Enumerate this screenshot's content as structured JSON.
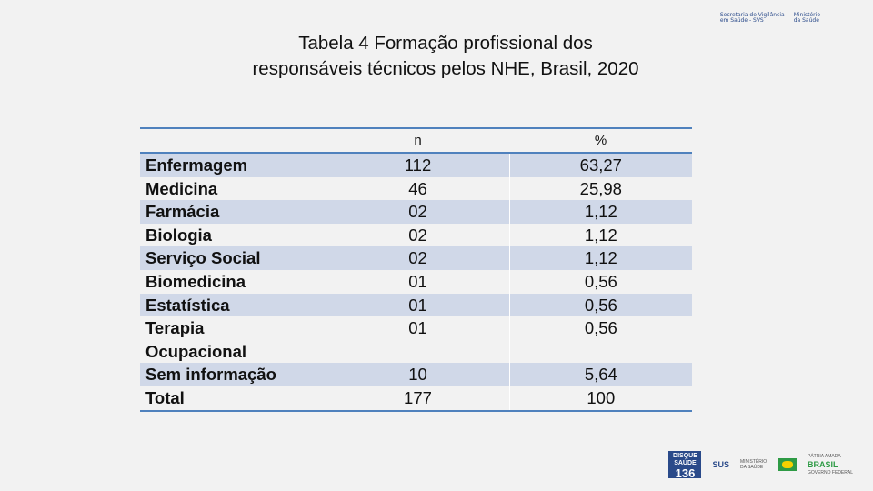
{
  "header": {
    "logo_left_line1": "Secretaria de Vigilância",
    "logo_left_line2": "em Saúde - SVS",
    "logo_right_line1": "Ministério",
    "logo_right_line2": "da Saúde"
  },
  "title": {
    "line1": "Tabela 4 Formação profissional dos",
    "line2": "responsáveis técnicos pelos NHE, Brasil, 2020"
  },
  "table": {
    "columns": [
      "",
      "n",
      "%"
    ],
    "rows": [
      {
        "label": "Enfermagem",
        "n": "112",
        "pct": "63,27"
      },
      {
        "label": "Medicina",
        "n": "46",
        "pct": "25,98"
      },
      {
        "label": "Farmácia",
        "n": "02",
        "pct": "1,12"
      },
      {
        "label": "Biologia",
        "n": "02",
        "pct": "1,12"
      },
      {
        "label": "Serviço Social",
        "n": "02",
        "pct": "1,12"
      },
      {
        "label": "Biomedicina",
        "n": "01",
        "pct": "0,56"
      },
      {
        "label": "Estatística",
        "n": "01",
        "pct": "0,56"
      },
      {
        "label": "Terapia",
        "n": "01",
        "pct": "0,56"
      },
      {
        "label": "Ocupacional",
        "n": "",
        "pct": ""
      },
      {
        "label": "Sem informação",
        "n": "10",
        "pct": "5,64"
      },
      {
        "label": "Total",
        "n": "177",
        "pct": "100"
      }
    ]
  },
  "footer": {
    "disque_line1": "DISQUE",
    "disque_line2": "SAÚDE",
    "disque_number": "136",
    "sus": "SUS",
    "ms_text": "MINISTÉRIO DA SAÚDE",
    "brasil_top": "PÁTRIA AMADA",
    "brasil": "BRASIL",
    "brasil_sub": "GOVERNO FEDERAL"
  }
}
